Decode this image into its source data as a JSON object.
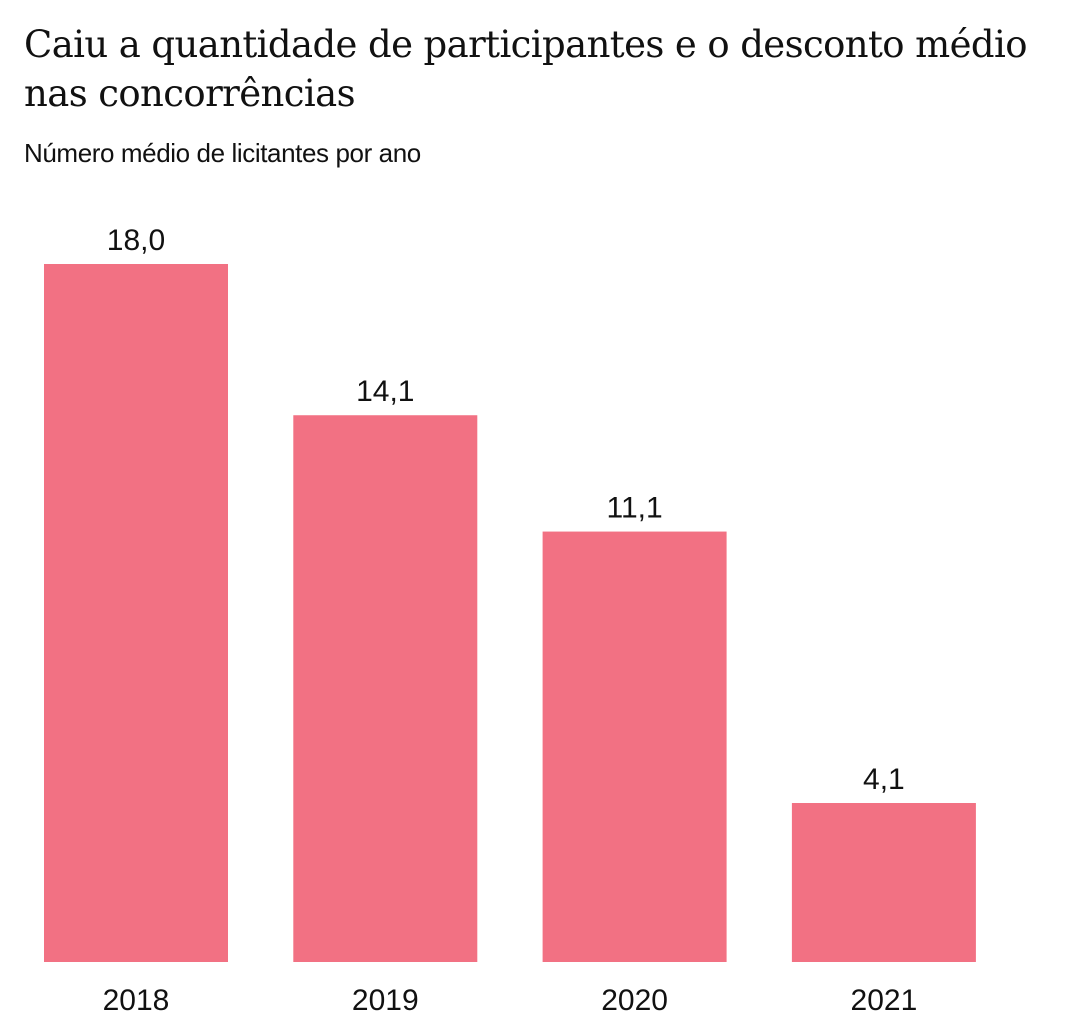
{
  "chart_data": {
    "type": "bar",
    "title": "Caiu a quantidade de participantes e o desconto médio nas concorrências",
    "subtitle": "Número médio de licitantes por ano",
    "categories": [
      "2018",
      "2019",
      "2020",
      "2021"
    ],
    "values": [
      18.0,
      14.1,
      11.1,
      4.1
    ],
    "value_labels": [
      "18,0",
      "14,1",
      "11,1",
      "4,1"
    ],
    "xlabel": "",
    "ylabel": "",
    "ylim": [
      0,
      18
    ],
    "grid": false,
    "legend": "none",
    "bar_color": "#f27183"
  }
}
